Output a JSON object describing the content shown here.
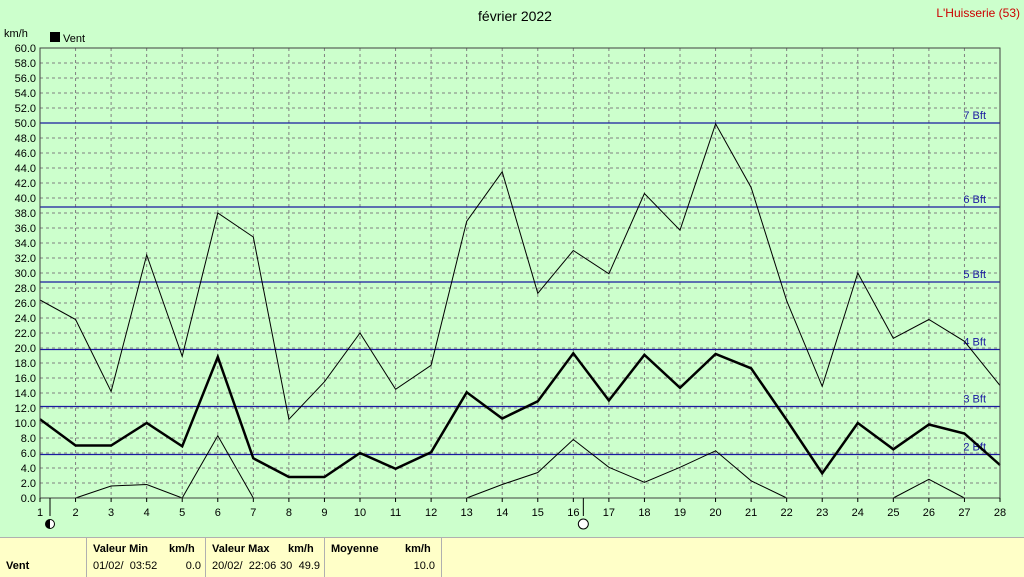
{
  "header": {
    "title": "février 2022",
    "station": "L'Huisserie (53)",
    "unit": "km/h",
    "legend": "Vent"
  },
  "colors": {
    "background": "#ccffcc",
    "plot_bg": "#ccffcc",
    "grid": "#808080",
    "beaufort": "#1a1aa0",
    "station": "#cc0000",
    "footer_bg": "#ffffc8",
    "series": "#000000"
  },
  "chart_data": {
    "type": "line",
    "title": "février 2022",
    "ylabel": "km/h",
    "ylim": [
      0,
      60
    ],
    "yticks": [
      "0.0",
      "2.0",
      "4.0",
      "6.0",
      "8.0",
      "10.0",
      "12.0",
      "14.0",
      "16.0",
      "18.0",
      "20.0",
      "22.0",
      "24.0",
      "26.0",
      "28.0",
      "30.0",
      "32.0",
      "34.0",
      "36.0",
      "38.0",
      "40.0",
      "42.0",
      "44.0",
      "46.0",
      "48.0",
      "50.0",
      "52.0",
      "54.0",
      "56.0",
      "58.0",
      "60.0"
    ],
    "xlim": [
      1,
      28
    ],
    "x": [
      1,
      2,
      3,
      4,
      5,
      6,
      7,
      8,
      9,
      10,
      11,
      12,
      13,
      14,
      15,
      16,
      17,
      18,
      19,
      20,
      21,
      22,
      23,
      24,
      25,
      26,
      27,
      28
    ],
    "grid": true,
    "legend_position": "top-left",
    "series": [
      {
        "name": "Vent",
        "style": "mean",
        "values": [
          10.5,
          7.0,
          7.0,
          10.0,
          6.9,
          18.8,
          5.3,
          2.8,
          2.8,
          6.0,
          3.9,
          6.1,
          14.1,
          10.6,
          12.9,
          19.3,
          13.0,
          19.1,
          14.7,
          19.2,
          17.3,
          10.4,
          3.3,
          10.0,
          6.5,
          9.8,
          8.6,
          4.4
        ]
      },
      {
        "name": "",
        "style": "max",
        "values": [
          26.4,
          23.8,
          14.2,
          32.4,
          18.9,
          38.0,
          34.8,
          10.5,
          15.5,
          22.0,
          14.5,
          17.7,
          36.9,
          43.5,
          27.3,
          33.0,
          29.9,
          40.6,
          35.7,
          49.9,
          41.4,
          26.3,
          14.9,
          30.0,
          21.3,
          23.8,
          20.9,
          15.0
        ]
      },
      {
        "name": "",
        "style": "min",
        "values": [
          null,
          0.0,
          1.6,
          1.8,
          0.0,
          8.3,
          0.0,
          null,
          null,
          null,
          null,
          null,
          0.0,
          1.8,
          3.4,
          7.8,
          4.1,
          2.1,
          4.1,
          6.3,
          2.3,
          0.0,
          null,
          null,
          0.0,
          2.5,
          0.0,
          null
        ]
      }
    ],
    "reference_lines": [
      {
        "label": "2 Bft",
        "value": 5.8
      },
      {
        "label": "3 Bft",
        "value": 12.2
      },
      {
        "label": "4 Bft",
        "value": 19.8
      },
      {
        "label": "5 Bft",
        "value": 28.8
      },
      {
        "label": "6 Bft",
        "value": 38.8
      },
      {
        "label": "7 Bft",
        "value": 50.0
      }
    ],
    "moon_phases": [
      {
        "day": 1,
        "phase": "new"
      },
      {
        "day": 16,
        "phase": "full"
      }
    ]
  },
  "stats": {
    "row_label": "Vent",
    "min_header": "Valeur Min",
    "max_header": "Valeur Max",
    "mean_header": "Moyenne",
    "unit_header": "km/h",
    "min_when": "01/02/  03:52",
    "min_value": "0.0",
    "max_when": "20/02/  22:06",
    "max_value": "49.9",
    "max_extra": "30",
    "mean_value": "10.0"
  }
}
